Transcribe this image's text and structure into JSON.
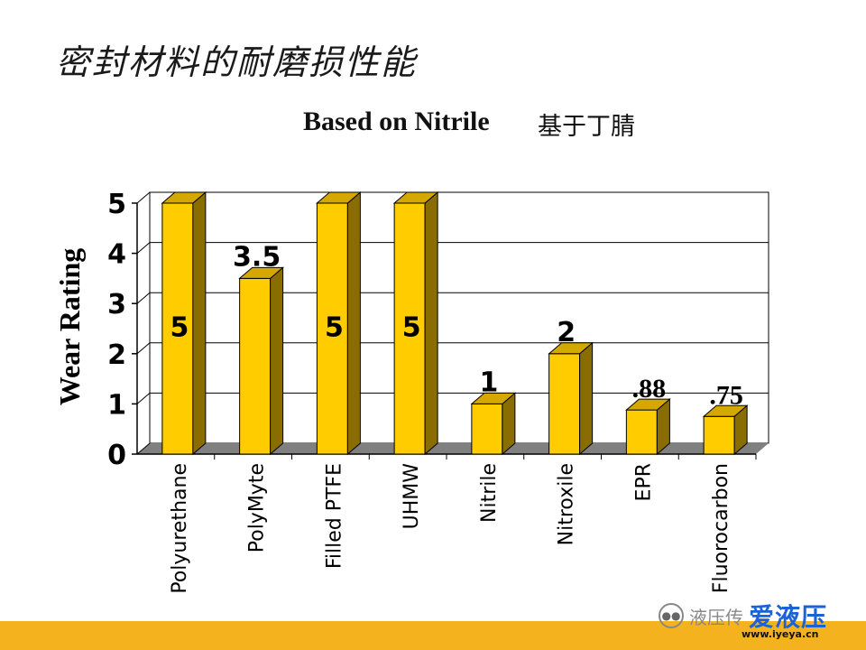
{
  "slide": {
    "title": "密封材料的耐磨损性能",
    "watermark_text": "液压传",
    "watermark_brand": "爱液压",
    "watermark_url": "www.iyeya.cn"
  },
  "colors": {
    "bar_face": "#ffcc00",
    "bar_side": "#8a6d00",
    "bar_top": "#d4a800",
    "floor": "#808080",
    "band": "#f5b21f"
  },
  "chart_data": {
    "type": "bar",
    "title": "Based on Nitrile",
    "title_cn": "基于丁腈",
    "xlabel": "",
    "ylabel": "Wear Rating",
    "ylim": [
      0,
      5
    ],
    "yticks": [
      "0",
      "1",
      "2",
      "3",
      "4",
      "5"
    ],
    "grid": true,
    "categories": [
      "Polyurethane",
      "PolyMyte",
      "Filled PTFE",
      "UHMW",
      "Nitrile",
      "Nitroxile",
      "EPR",
      "Fluorocarbon"
    ],
    "values": [
      5,
      3.5,
      5,
      5,
      1,
      2,
      0.88,
      0.75
    ],
    "data_labels": [
      "5",
      "3.5",
      "5",
      "5",
      "1",
      "2",
      ".88",
      ".75"
    ]
  }
}
